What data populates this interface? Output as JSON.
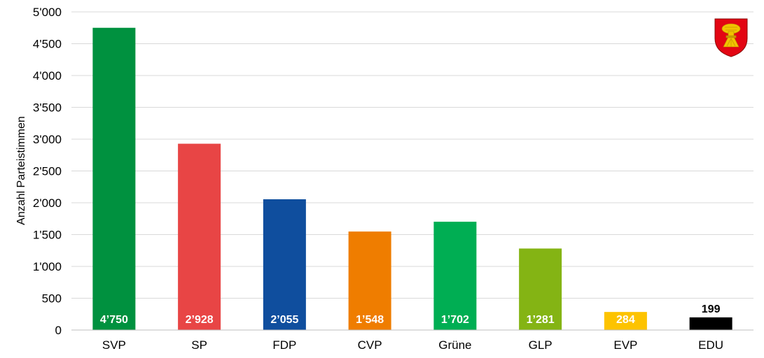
{
  "chart_data": {
    "type": "bar",
    "title": "",
    "xlabel": "",
    "ylabel": "Anzahl Parteistimmen",
    "ylim": [
      0,
      5000
    ],
    "yticks": [
      0,
      500,
      1000,
      1500,
      2000,
      2500,
      3000,
      3500,
      4000,
      4500,
      5000
    ],
    "ytick_labels": [
      "0",
      "500",
      "1'000",
      "1'500",
      "2'000",
      "2'500",
      "3'000",
      "3'500",
      "4'000",
      "4'500",
      "5'000"
    ],
    "grid": true,
    "categories": [
      "SVP",
      "SP",
      "FDP",
      "CVP",
      "Grüne",
      "GLP",
      "EVP",
      "EDU"
    ],
    "values": [
      4750,
      2928,
      2055,
      1548,
      1702,
      1281,
      284,
      199
    ],
    "value_labels": [
      "4’750",
      "2’928",
      "2’055",
      "1’548",
      "1’702",
      "1’281",
      "284",
      "199"
    ],
    "colors": [
      "#00913f",
      "#e84545",
      "#0f4e9e",
      "#ef7d00",
      "#00ae53",
      "#84b414",
      "#fdc300",
      "#000000"
    ],
    "label_colors": [
      "#ffffff",
      "#ffffff",
      "#ffffff",
      "#ffffff",
      "#ffffff",
      "#ffffff",
      "#ffffff",
      "#000000"
    ],
    "label_positions": [
      "inside-base",
      "inside-base",
      "inside-base",
      "inside-base",
      "inside-base",
      "inside-base",
      "inside-base",
      "above"
    ]
  },
  "logo": {
    "icon": "coat-of-arms-icon",
    "shield_color": "#e30613",
    "emblem_color": "#f2c400"
  }
}
